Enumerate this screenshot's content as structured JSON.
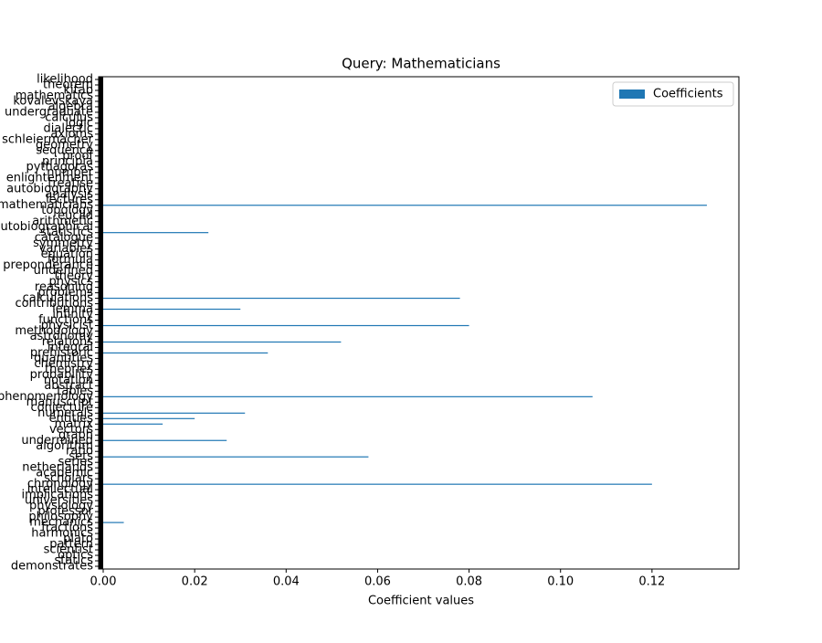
{
  "chart_data": {
    "type": "barh",
    "title": "Query: Mathematicians",
    "xlabel": "Coefficient values",
    "legend": "upper right",
    "categories": [
      "likelihood",
      "theorem",
      "kitab",
      "mathematics",
      "kovalevskaya",
      "algebra",
      "undergraduate",
      "calculus",
      "logic",
      "dialectic",
      "axioms",
      "schleiermacher",
      "geometry",
      "sequence",
      "proof",
      "principia",
      "pythagoras",
      "number",
      "enlightenment",
      "treatise",
      "autobiography",
      "analysis",
      "lectures",
      "mathematicians",
      "topology",
      "euclid",
      "arithmetic",
      "autobiographical",
      "statistics",
      "catalogue",
      "symmetry",
      "variables",
      "equation",
      "formula",
      "preponderance",
      "undefined",
      "theory",
      "physics",
      "reasoning",
      "problems",
      "calculations",
      "contributions",
      "lemma",
      "infinity",
      "functions",
      "physicist",
      "methodology",
      "astronomy",
      "relations",
      "integral",
      "prehistoric",
      "quantities",
      "chemistry",
      "theories",
      "probability",
      "notation",
      "abstract",
      "tables",
      "phenomenology",
      "manuscript",
      "conjecture",
      "numerals",
      "entities",
      "matrix",
      "vectors",
      "graph",
      "undermined",
      "algorithm",
      "ratio",
      "sets",
      "series",
      "netherlands",
      "academic",
      "scholars",
      "chronology",
      "intellectual",
      "implications",
      "universities",
      "physiology",
      "professor",
      "philosophy",
      "mechanics",
      "fractions",
      "harmonics",
      "plato",
      "pattern",
      "scientist",
      "optics",
      "statics",
      "demonstrates"
    ],
    "series": [
      {
        "name": "Coefficients",
        "color": "#1f77b4",
        "values": [
          0,
          0,
          0,
          0,
          0,
          0,
          0,
          0,
          0,
          0,
          0,
          0,
          0,
          0,
          0,
          0,
          0,
          0,
          0,
          0,
          0,
          0,
          0,
          0.132,
          0,
          0,
          0,
          0,
          0.023,
          0,
          0,
          0,
          0,
          0,
          0,
          0,
          0,
          0,
          0,
          0,
          0.078,
          0,
          0.03,
          0,
          0,
          0.08,
          0,
          0,
          0.052,
          0,
          0.036,
          0,
          0,
          0,
          0,
          0,
          0,
          0,
          0.107,
          0,
          0,
          0.031,
          0.02,
          0.013,
          0,
          0,
          0.027,
          0,
          0,
          0.058,
          0,
          0,
          0,
          0,
          0.12,
          0,
          0,
          0,
          0,
          0,
          0,
          0.0045,
          0,
          0,
          0,
          0,
          0,
          0,
          0,
          0
        ]
      }
    ],
    "xlim": [
      -0.001,
      0.139
    ],
    "xticks": [
      {
        "value": 0,
        "label": "0.00"
      },
      0.02,
      0.04,
      0.06,
      0.08,
      {
        "value": 0.1,
        "label": "0.10"
      },
      0.12
    ]
  }
}
